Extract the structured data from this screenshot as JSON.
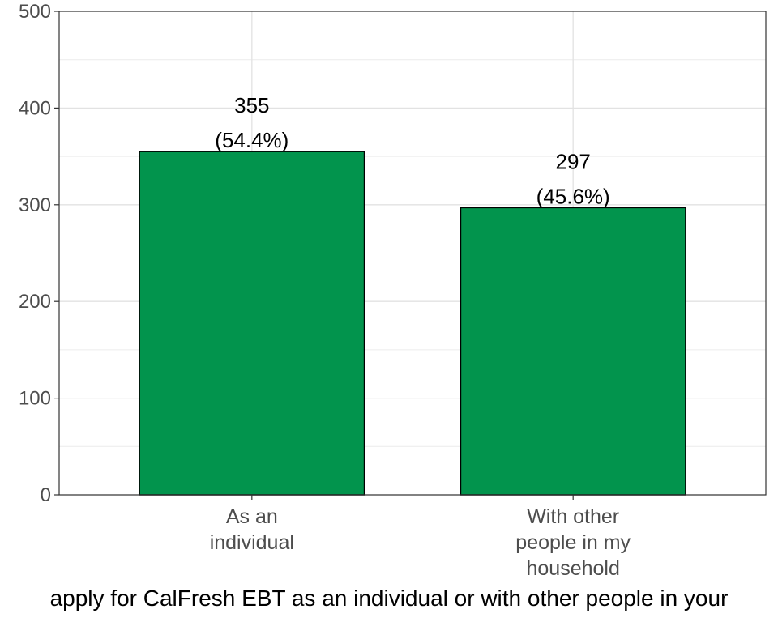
{
  "chart_data": {
    "type": "bar",
    "categories": [
      "As an individual",
      "With other people in my household"
    ],
    "category_lines": [
      [
        "As an",
        "individual"
      ],
      [
        "With other",
        "people in my",
        "household"
      ]
    ],
    "values": [
      355,
      297
    ],
    "percent_labels": [
      "(54.4%)",
      "(45.6%)"
    ],
    "xlabel": "apply for CalFresh EBT as an individual or with other people in your",
    "ylabel": "",
    "ylim": [
      0,
      500
    ],
    "yticks": [
      0,
      100,
      200,
      300,
      400,
      500
    ],
    "grid": true,
    "bar_color": "#02944D",
    "bar_edge_color": "#000000"
  }
}
